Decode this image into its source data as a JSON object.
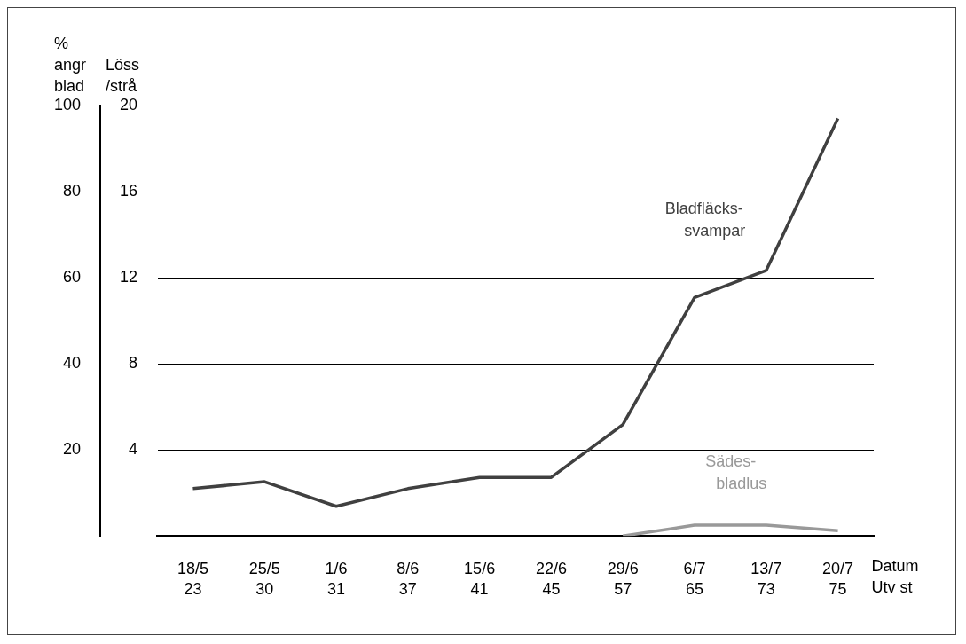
{
  "chart_data": {
    "type": "line",
    "categories": [
      "18/5\n23",
      "25/5\n30",
      "1/6\n31",
      "8/6\n37",
      "15/6\n41",
      "22/6\n45",
      "29/6\n57",
      "6/7\n65",
      "13/7\n73",
      "20/7\n75"
    ],
    "xlabel": "Datum\nUtv st",
    "ylabel": "%\nangr\nblad",
    "y2label": "Löss\n/strå",
    "ylim": [
      0,
      100
    ],
    "yticks": [
      20,
      40,
      60,
      80,
      100
    ],
    "y2lim": [
      0,
      20
    ],
    "y2ticks": [
      4,
      8,
      12,
      16,
      20
    ],
    "grid": "y",
    "legend": false,
    "marker": "none",
    "line_style": "solid",
    "series": [
      {
        "name": "Bladfläcks-\nsvampar",
        "color": "#404040",
        "values": [
          11,
          12.6,
          6.9,
          11,
          13.6,
          13.6,
          25.9,
          55.4,
          61.7,
          97
        ]
      },
      {
        "name": "Sädes-\nbladlus",
        "color": "#999999",
        "axis": "y2",
        "values": [
          null,
          null,
          null,
          null,
          null,
          null,
          0,
          0.5,
          0.5,
          0.25
        ]
      }
    ]
  }
}
